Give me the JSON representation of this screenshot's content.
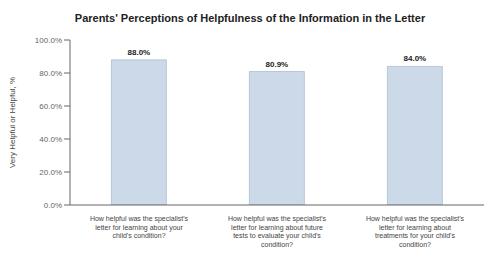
{
  "chart_data": {
    "type": "bar",
    "title": "Parents' Perceptions of Helpfulness of the Information in the Letter",
    "y_label": "Very Helpful or Helpful, %",
    "categories": [
      "How helpful was the specialist's\nletter for learning about your\nchild's condition?",
      "How helpful was the specialist's\nletter for learning about future\ntests to evaluate your child's\ncondition?",
      "How helpful was the specialist's\nletter for learning about\ntreatments for your child's\ncondition?"
    ],
    "values": [
      88.0,
      80.9,
      84.0
    ],
    "value_labels": [
      "88.0%",
      "80.9%",
      "84.0%"
    ],
    "data_labels": true,
    "color": "#ccd9e8",
    "ylim": [
      0,
      100
    ],
    "yticks": [
      {
        "value": 0,
        "label": "0.0%"
      },
      {
        "value": 20,
        "label": "20.0%"
      },
      {
        "value": 40,
        "label": "40.0%"
      },
      {
        "value": 60,
        "label": "60.0%"
      },
      {
        "value": 80,
        "label": "80.0%"
      },
      {
        "value": 100,
        "label": "100.0%"
      }
    ],
    "grid": false
  }
}
